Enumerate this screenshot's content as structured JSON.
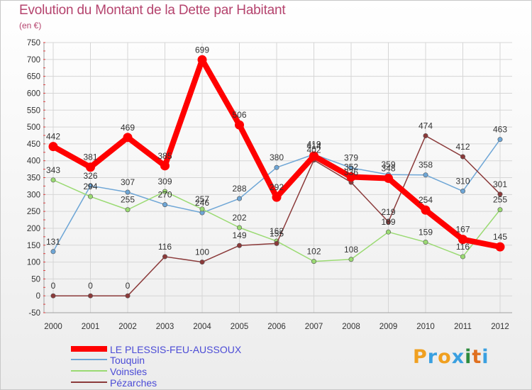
{
  "title": "Evolution du Montant de la Dette par Habitant",
  "unit": "(en €)",
  "logo": {
    "letters": [
      "P",
      "r",
      "o",
      "x",
      "i",
      "t",
      "i"
    ],
    "colors": [
      "#f0a020",
      "#3aa0e0",
      "#f0a020",
      "#3aa0e0",
      "#2e8b3e",
      "#e07020",
      "#3aa0e0"
    ]
  },
  "chart_data": {
    "type": "line",
    "title": "Evolution du Montant de la Dette par Habitant",
    "ylabel": "(en €)",
    "xlabel": "",
    "ylim": [
      -50,
      750
    ],
    "yticks": [
      -50,
      0,
      50,
      100,
      150,
      200,
      250,
      300,
      350,
      400,
      450,
      500,
      550,
      600,
      650,
      700,
      750
    ],
    "categories": [
      "2000",
      "2001",
      "2002",
      "2003",
      "2004",
      "2005",
      "2006",
      "2007",
      "2008",
      "2009",
      "2010",
      "2011",
      "2012"
    ],
    "series": [
      {
        "name": "LE PLESSIS-FEU-AUSSOUX",
        "color": "#ff0000",
        "bold": true,
        "values": [
          442,
          381,
          469,
          385,
          699,
          506,
          292,
          414,
          352,
          348,
          254,
          167,
          145
        ],
        "labels": [
          "442",
          "381",
          "469",
          "385",
          "699",
          "506",
          "292",
          "414",
          "352",
          "348",
          "254",
          "167",
          "145"
        ]
      },
      {
        "name": "Touquin",
        "color": "#6ea6d6",
        "bold": false,
        "values": [
          131,
          326,
          307,
          270,
          246,
          288,
          380,
          419,
          379,
          359,
          358,
          310,
          463
        ],
        "labels": [
          "131",
          "326",
          "307",
          "270",
          "246",
          "288",
          "380",
          "419",
          "379",
          "359",
          "358",
          "310",
          "463"
        ]
      },
      {
        "name": "Voinsles",
        "color": "#9ada72",
        "bold": false,
        "values": [
          343,
          294,
          255,
          309,
          257,
          202,
          162,
          102,
          108,
          189,
          159,
          116,
          255
        ],
        "labels": [
          "343",
          "294",
          "255",
          "309",
          "257",
          "202",
          "162",
          "102",
          "108",
          "189",
          "159",
          "116",
          "255"
        ]
      },
      {
        "name": "Pézarches",
        "color": "#8b3a3a",
        "bold": false,
        "values": [
          0,
          0,
          0,
          116,
          100,
          149,
          155,
          402,
          336,
          219,
          474,
          412,
          301
        ],
        "labels": [
          "0",
          "0",
          "0",
          "116",
          "100",
          "149",
          "155",
          "402",
          "336",
          "219",
          "474",
          "412",
          "301"
        ]
      }
    ],
    "legend": [
      {
        "label": "LE PLESSIS-FEU-AUSSOUX",
        "color": "#ff0000",
        "bold": true
      },
      {
        "label": "Touquin",
        "color": "#6ea6d6",
        "bold": false
      },
      {
        "label": "Voinsles",
        "color": "#9ada72",
        "bold": false
      },
      {
        "label": "Pézarches",
        "color": "#8b3a3a",
        "bold": false
      }
    ]
  }
}
